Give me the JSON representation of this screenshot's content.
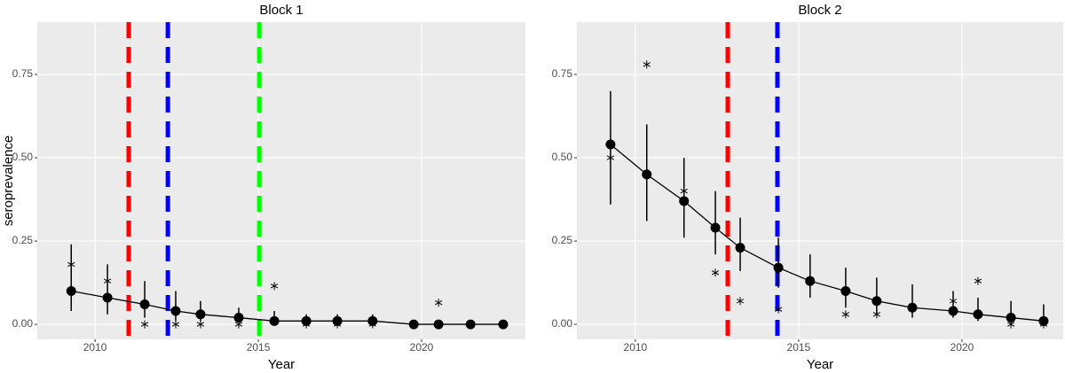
{
  "chart_data": [
    {
      "type": "line",
      "title": "Block 1",
      "x_label": "Year",
      "y_label": "seroprevalence",
      "xlim": [
        2008.23,
        2023.18
      ],
      "ylim": [
        -0.045,
        0.907
      ],
      "xticks": [
        2010,
        2015,
        2020
      ],
      "yticks": [
        {
          "value": 0,
          "label": "0.00"
        },
        {
          "value": 0.25,
          "label": "0.25"
        },
        {
          "value": 0.5,
          "label": "0.50"
        },
        {
          "value": 0.75,
          "label": "0.75"
        }
      ],
      "grid": true,
      "background": "#ebebeb",
      "x": [
        2009.27,
        2010.38,
        2011.52,
        2012.47,
        2013.23,
        2014.4,
        2015.49,
        2016.47,
        2017.42,
        2018.5,
        2019.76,
        2020.52,
        2021.5,
        2022.5
      ],
      "series": [
        {
          "color": "#000000",
          "marker": "circle",
          "values": [
            0.1,
            0.08,
            0.06,
            0.04,
            0.03,
            0.02,
            0.01,
            0.01,
            0.01,
            0.01,
            0,
            0,
            0,
            0
          ],
          "lower": [
            0.04,
            0.03,
            0.02,
            0.01,
            0.01,
            0.005,
            0,
            0,
            0,
            0,
            0,
            0,
            0,
            0
          ],
          "upper": [
            0.24,
            0.18,
            0.13,
            0.1,
            0.07,
            0.05,
            0.04,
            0.03,
            0.03,
            0.03,
            0.01,
            0.01,
            0.01,
            0.01
          ]
        },
        {
          "color": "#000000",
          "marker": "asterisk",
          "values": [
            0.18,
            0.13,
            0,
            0,
            0,
            0,
            0.115,
            0,
            0,
            0,
            0,
            0.065,
            0,
            0
          ]
        }
      ],
      "vlines": [
        {
          "x": 2011.03,
          "color": "#ff0000"
        },
        {
          "x": 2012.23,
          "color": "#0000ff"
        },
        {
          "x": 2015.03,
          "color": "#00ff00"
        }
      ]
    },
    {
      "type": "line",
      "title": "Block 2",
      "x_label": "Year",
      "xlim": [
        2008.21,
        2023.1
      ],
      "ylim": [
        -0.045,
        0.907
      ],
      "xticks": [
        2010,
        2015,
        2020
      ],
      "yticks": [
        {
          "value": 0,
          "label": "0.00"
        },
        {
          "value": 0.25,
          "label": "0.25"
        },
        {
          "value": 0.5,
          "label": "0.50"
        },
        {
          "value": 0.75,
          "label": "0.75"
        }
      ],
      "grid": true,
      "background": "#ebebeb",
      "x": [
        2009.24,
        2010.35,
        2011.49,
        2012.45,
        2013.21,
        2014.38,
        2015.35,
        2016.44,
        2017.39,
        2018.48,
        2019.73,
        2020.49,
        2021.5,
        2022.5
      ],
      "series": [
        {
          "color": "#000000",
          "marker": "circle",
          "values": [
            0.54,
            0.45,
            0.37,
            0.29,
            0.23,
            0.17,
            0.13,
            0.1,
            0.07,
            0.05,
            0.04,
            0.03,
            0.02,
            0.01
          ],
          "lower": [
            0.36,
            0.31,
            0.26,
            0.21,
            0.16,
            0.11,
            0.08,
            0.05,
            0.03,
            0.02,
            0.02,
            0.01,
            0,
            0
          ],
          "upper": [
            0.7,
            0.6,
            0.5,
            0.4,
            0.32,
            0.26,
            0.21,
            0.17,
            0.14,
            0.12,
            0.1,
            0.08,
            0.07,
            0.06
          ]
        },
        {
          "color": "#000000",
          "marker": "asterisk",
          "values": [
            0.5,
            0.78,
            0.4,
            0.155,
            0.07,
            0.045,
            0.135,
            0.03,
            0.03,
            0.05,
            0.07,
            0.13,
            0,
            0
          ]
        }
      ],
      "vlines": [
        {
          "x": 2012.83,
          "color": "#ff0000"
        },
        {
          "x": 2014.35,
          "color": "#0000ff"
        }
      ]
    }
  ]
}
